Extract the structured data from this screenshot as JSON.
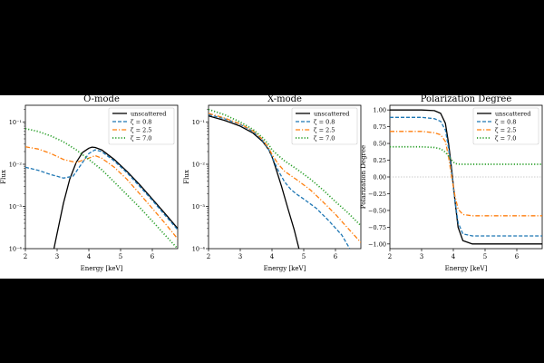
{
  "figure": {
    "background": "#000000",
    "panel_background": "#ffffff"
  },
  "chart_data": [
    {
      "type": "line",
      "title": "O-mode",
      "xlabel": "Energy [keV]",
      "ylabel": "Flux",
      "yscale": "log",
      "xlim": [
        2,
        6.8
      ],
      "ylim": [
        0.0001,
        0.25
      ],
      "xticks": [
        {
          "v": 2,
          "label": "2"
        },
        {
          "v": 3,
          "label": "3"
        },
        {
          "v": 4,
          "label": "4"
        },
        {
          "v": 5,
          "label": "5"
        },
        {
          "v": 6,
          "label": "6"
        }
      ],
      "yticks": [
        {
          "v": 0.0001,
          "label": "10⁻⁴"
        },
        {
          "v": 0.001,
          "label": "10⁻³"
        },
        {
          "v": 0.01,
          "label": "10⁻²"
        },
        {
          "v": 0.1,
          "label": "10⁻¹"
        }
      ],
      "legend": {
        "position": "top-right"
      },
      "series": [
        {
          "name": "unscattered",
          "color": "#000000",
          "style": "solid",
          "points": [
            [
              2.9,
              0.0001
            ],
            [
              3.0,
              0.00023
            ],
            [
              3.2,
              0.0012
            ],
            [
              3.4,
              0.0045
            ],
            [
              3.6,
              0.011
            ],
            [
              3.8,
              0.019
            ],
            [
              4.0,
              0.024
            ],
            [
              4.1,
              0.0255
            ],
            [
              4.2,
              0.025
            ],
            [
              4.4,
              0.022
            ],
            [
              4.8,
              0.013
            ],
            [
              5.2,
              0.0068
            ],
            [
              5.6,
              0.0033
            ],
            [
              6.0,
              0.0015
            ],
            [
              6.4,
              0.00068
            ],
            [
              6.8,
              0.0003
            ]
          ]
        },
        {
          "name": "ζ = 0.8",
          "color": "#1f77b4",
          "style": "dashed",
          "points": [
            [
              2.0,
              0.0085
            ],
            [
              2.4,
              0.0072
            ],
            [
              2.8,
              0.0057
            ],
            [
              3.2,
              0.0047
            ],
            [
              3.5,
              0.0052
            ],
            [
              3.8,
              0.011
            ],
            [
              4.0,
              0.018
            ],
            [
              4.2,
              0.022
            ],
            [
              4.4,
              0.02
            ],
            [
              4.8,
              0.012
            ],
            [
              5.2,
              0.0063
            ],
            [
              5.6,
              0.003
            ],
            [
              6.0,
              0.0014
            ],
            [
              6.4,
              0.00062
            ],
            [
              6.8,
              0.00028
            ]
          ]
        },
        {
          "name": "ζ = 2.5",
          "color": "#ff7f0e",
          "style": "dashdot",
          "points": [
            [
              2.0,
              0.026
            ],
            [
              2.4,
              0.023
            ],
            [
              2.8,
              0.018
            ],
            [
              3.2,
              0.013
            ],
            [
              3.6,
              0.011
            ],
            [
              4.0,
              0.014
            ],
            [
              4.2,
              0.016
            ],
            [
              4.4,
              0.014
            ],
            [
              4.8,
              0.0085
            ],
            [
              5.2,
              0.0044
            ],
            [
              5.6,
              0.002
            ],
            [
              6.0,
              0.0009
            ],
            [
              6.4,
              0.0004
            ],
            [
              6.8,
              0.00017
            ]
          ]
        },
        {
          "name": "ζ = 7.0",
          "color": "#2ca02c",
          "style": "dotted",
          "points": [
            [
              2.0,
              0.07
            ],
            [
              2.4,
              0.06
            ],
            [
              2.8,
              0.047
            ],
            [
              3.2,
              0.034
            ],
            [
              3.6,
              0.022
            ],
            [
              4.0,
              0.013
            ],
            [
              4.4,
              0.0075
            ],
            [
              4.8,
              0.0038
            ],
            [
              5.2,
              0.0019
            ],
            [
              5.6,
              0.00095
            ],
            [
              6.0,
              0.00045
            ],
            [
              6.4,
              0.00021
            ],
            [
              6.8,
              0.0001
            ]
          ]
        }
      ]
    },
    {
      "type": "line",
      "title": "X-mode",
      "xlabel": "Energy [keV]",
      "ylabel": "Flux",
      "yscale": "log",
      "xlim": [
        2,
        6.8
      ],
      "ylim": [
        0.0001,
        0.25
      ],
      "xticks": [
        {
          "v": 2,
          "label": "2"
        },
        {
          "v": 3,
          "label": "3"
        },
        {
          "v": 4,
          "label": "4"
        },
        {
          "v": 5,
          "label": "5"
        },
        {
          "v": 6,
          "label": "6"
        }
      ],
      "yticks": [
        {
          "v": 0.0001,
          "label": "10⁻⁴"
        },
        {
          "v": 0.001,
          "label": "10⁻³"
        },
        {
          "v": 0.01,
          "label": "10⁻²"
        },
        {
          "v": 0.1,
          "label": "10⁻¹"
        }
      ],
      "legend": {
        "position": "top-right"
      },
      "series": [
        {
          "name": "unscattered",
          "color": "#000000",
          "style": "solid",
          "points": [
            [
              2.0,
              0.14
            ],
            [
              2.5,
              0.11
            ],
            [
              3.0,
              0.08
            ],
            [
              3.4,
              0.055
            ],
            [
              3.7,
              0.035
            ],
            [
              3.9,
              0.022
            ],
            [
              4.0,
              0.015
            ],
            [
              4.1,
              0.009
            ],
            [
              4.3,
              0.003
            ],
            [
              4.5,
              0.0009
            ],
            [
              4.7,
              0.00028
            ],
            [
              4.85,
              0.0001
            ]
          ]
        },
        {
          "name": "ζ = 0.8",
          "color": "#1f77b4",
          "style": "dashed",
          "points": [
            [
              2.0,
              0.15
            ],
            [
              2.5,
              0.12
            ],
            [
              3.0,
              0.088
            ],
            [
              3.4,
              0.06
            ],
            [
              3.7,
              0.037
            ],
            [
              3.9,
              0.022
            ],
            [
              4.0,
              0.015
            ],
            [
              4.2,
              0.007
            ],
            [
              4.4,
              0.0038
            ],
            [
              4.6,
              0.0025
            ],
            [
              4.8,
              0.0019
            ],
            [
              5.0,
              0.0015
            ],
            [
              5.4,
              0.0009
            ],
            [
              5.8,
              0.00045
            ],
            [
              6.2,
              0.00021
            ],
            [
              6.45,
              0.0001
            ]
          ]
        },
        {
          "name": "ζ = 2.5",
          "color": "#ff7f0e",
          "style": "dashdot",
          "points": [
            [
              2.0,
              0.16
            ],
            [
              2.5,
              0.125
            ],
            [
              3.0,
              0.09
            ],
            [
              3.4,
              0.062
            ],
            [
              3.7,
              0.039
            ],
            [
              3.9,
              0.024
            ],
            [
              4.0,
              0.017
            ],
            [
              4.2,
              0.01
            ],
            [
              4.4,
              0.0068
            ],
            [
              4.8,
              0.0042
            ],
            [
              5.2,
              0.0025
            ],
            [
              5.6,
              0.0013
            ],
            [
              6.0,
              0.00065
            ],
            [
              6.4,
              0.0003
            ],
            [
              6.8,
              0.00014
            ]
          ]
        },
        {
          "name": "ζ = 7.0",
          "color": "#2ca02c",
          "style": "dotted",
          "points": [
            [
              2.0,
              0.2
            ],
            [
              2.5,
              0.15
            ],
            [
              3.0,
              0.1
            ],
            [
              3.4,
              0.067
            ],
            [
              3.7,
              0.043
            ],
            [
              3.9,
              0.029
            ],
            [
              4.0,
              0.022
            ],
            [
              4.2,
              0.016
            ],
            [
              4.4,
              0.012
            ],
            [
              4.8,
              0.0075
            ],
            [
              5.2,
              0.0045
            ],
            [
              5.6,
              0.0025
            ],
            [
              6.0,
              0.0013
            ],
            [
              6.4,
              0.0007
            ],
            [
              6.8,
              0.00035
            ]
          ]
        }
      ]
    },
    {
      "type": "line",
      "title": "Polarization Degree",
      "xlabel": "Energy [keV]",
      "ylabel": "Polarization Degree",
      "yscale": "linear",
      "xlim": [
        2,
        6.8
      ],
      "ylim": [
        -1.07,
        1.07
      ],
      "xticks": [
        {
          "v": 2,
          "label": "2"
        },
        {
          "v": 3,
          "label": "3"
        },
        {
          "v": 4,
          "label": "4"
        },
        {
          "v": 5,
          "label": "5"
        },
        {
          "v": 6,
          "label": "6"
        }
      ],
      "yticks": [
        {
          "v": -1.0,
          "label": "−1.00"
        },
        {
          "v": -0.75,
          "label": "−0.75"
        },
        {
          "v": -0.5,
          "label": "−0.50"
        },
        {
          "v": -0.25,
          "label": "−0.25"
        },
        {
          "v": 0,
          "label": "0.00"
        },
        {
          "v": 0.25,
          "label": "0.25"
        },
        {
          "v": 0.5,
          "label": "0.50"
        },
        {
          "v": 0.75,
          "label": "0.75"
        },
        {
          "v": 1.0,
          "label": "1.00"
        }
      ],
      "zero_line": true,
      "legend": {
        "position": "top-right"
      },
      "series": [
        {
          "name": "unscattered",
          "color": "#000000",
          "style": "solid",
          "points": [
            [
              2.0,
              1.0
            ],
            [
              3.0,
              1.0
            ],
            [
              3.4,
              0.99
            ],
            [
              3.6,
              0.95
            ],
            [
              3.75,
              0.8
            ],
            [
              3.85,
              0.5
            ],
            [
              3.95,
              0.1
            ],
            [
              4.05,
              -0.35
            ],
            [
              4.15,
              -0.75
            ],
            [
              4.3,
              -0.95
            ],
            [
              4.6,
              -1.0
            ],
            [
              6.8,
              -1.0
            ]
          ]
        },
        {
          "name": "ζ = 0.8",
          "color": "#1f77b4",
          "style": "dashed",
          "points": [
            [
              2.0,
              0.89
            ],
            [
              3.0,
              0.89
            ],
            [
              3.4,
              0.87
            ],
            [
              3.6,
              0.83
            ],
            [
              3.75,
              0.7
            ],
            [
              3.85,
              0.43
            ],
            [
              3.95,
              0.05
            ],
            [
              4.05,
              -0.35
            ],
            [
              4.15,
              -0.68
            ],
            [
              4.3,
              -0.85
            ],
            [
              4.6,
              -0.88
            ],
            [
              6.8,
              -0.88
            ]
          ]
        },
        {
          "name": "ζ = 2.5",
          "color": "#ff7f0e",
          "style": "dashdot",
          "points": [
            [
              2.0,
              0.68
            ],
            [
              3.0,
              0.68
            ],
            [
              3.4,
              0.66
            ],
            [
              3.6,
              0.63
            ],
            [
              3.75,
              0.53
            ],
            [
              3.85,
              0.3
            ],
            [
              3.95,
              0.0
            ],
            [
              4.05,
              -0.28
            ],
            [
              4.15,
              -0.48
            ],
            [
              4.3,
              -0.56
            ],
            [
              4.6,
              -0.58
            ],
            [
              6.8,
              -0.58
            ]
          ]
        },
        {
          "name": "ζ = 7.0",
          "color": "#2ca02c",
          "style": "dotted",
          "points": [
            [
              2.0,
              0.45
            ],
            [
              3.0,
              0.45
            ],
            [
              3.4,
              0.44
            ],
            [
              3.6,
              0.42
            ],
            [
              3.75,
              0.37
            ],
            [
              3.85,
              0.31
            ],
            [
              3.95,
              0.25
            ],
            [
              4.05,
              0.2
            ],
            [
              4.2,
              0.19
            ],
            [
              4.6,
              0.19
            ],
            [
              6.8,
              0.19
            ]
          ]
        }
      ]
    }
  ]
}
